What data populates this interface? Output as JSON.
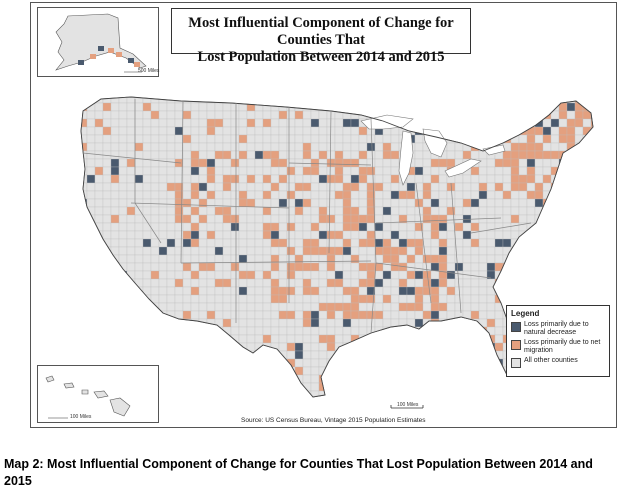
{
  "map": {
    "title_line1": "Most Influential Component of Change for Counties That",
    "title_line2": "Lost Population Between 2014 and 2015",
    "source": "Source:  US Census Bureau, Vintage 2015 Population Estimates",
    "colors": {
      "natural_decrease": "#4a5a6e",
      "net_migration": "#e4a07f",
      "other": "#e3e3e3",
      "border": "#bdbdbd"
    },
    "legend": {
      "title": "Legend",
      "items": [
        {
          "label": "Loss primarily due to natural decrease",
          "color": "#4a5a6e"
        },
        {
          "label": "Loss primarily due to net migration",
          "color": "#e4a07f"
        },
        {
          "label": "All other counties",
          "color": "#e3e3e3"
        }
      ]
    },
    "insets": {
      "alaska_scale": "500 Miles",
      "hawaii_scale": "100 Miles",
      "main_scale": "100 Miles"
    }
  },
  "caption": "Map 2: Most Influential Component of Change for Counties That Lost Population Between 2014  and 2015"
}
